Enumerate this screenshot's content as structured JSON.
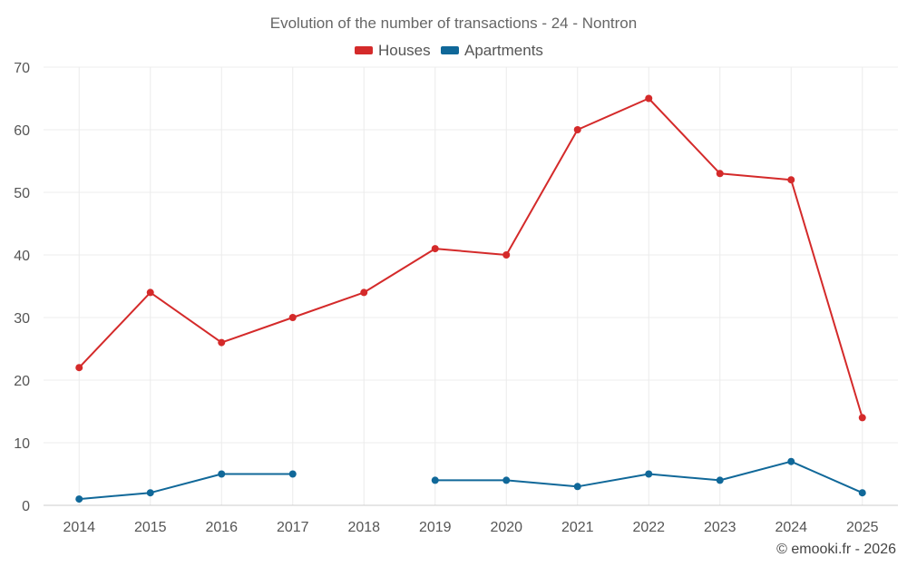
{
  "chart_data": {
    "type": "line",
    "title": "Evolution of the number of transactions - 24 - Nontron",
    "categories": [
      "2014",
      "2015",
      "2016",
      "2017",
      "2018",
      "2019",
      "2020",
      "2021",
      "2022",
      "2023",
      "2024",
      "2025"
    ],
    "series": [
      {
        "name": "Houses",
        "color": "#d42a2a",
        "values": [
          22,
          34,
          26,
          30,
          34,
          41,
          40,
          60,
          65,
          53,
          52,
          14
        ]
      },
      {
        "name": "Apartments",
        "color": "#106899",
        "values": [
          1,
          2,
          5,
          5,
          null,
          4,
          4,
          3,
          5,
          4,
          7,
          2
        ]
      }
    ],
    "ylim": [
      0,
      70
    ],
    "yticks": [
      0,
      10,
      20,
      30,
      40,
      50,
      60,
      70
    ],
    "xlabel": "",
    "ylabel": "",
    "grid": true,
    "legend_position": "top-center"
  },
  "credit": "© emooki.fr - 2026"
}
